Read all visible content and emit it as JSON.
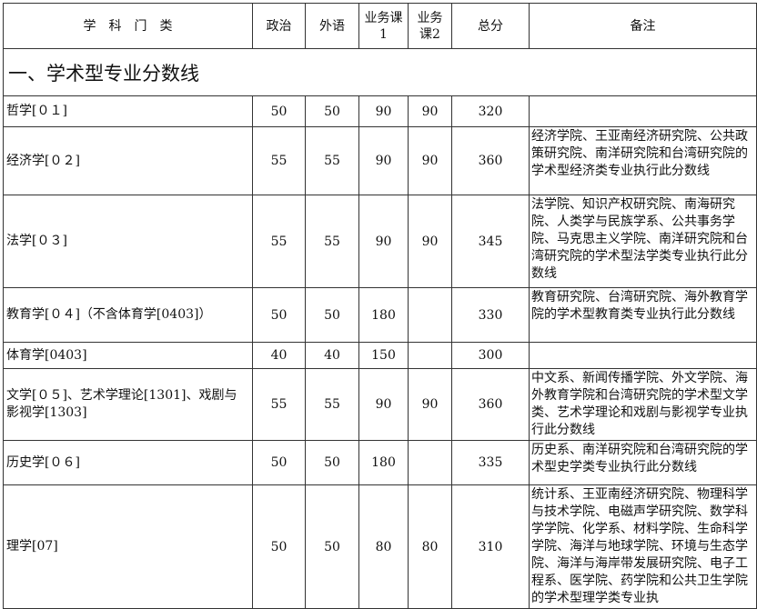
{
  "header": {
    "category": "学　科　门　类",
    "politics": "政治",
    "foreign_language": "外语",
    "course1": "业务课1",
    "course2": "业务课2",
    "total": "总分",
    "notes": "备注"
  },
  "section_title": "一、学术型专业分数线",
  "rows": [
    {
      "name": "哲学[０１]",
      "politics": "50",
      "foreign": "50",
      "c1": "90",
      "c2": "90",
      "total": "320",
      "note": ""
    },
    {
      "name": "经济学[０２]",
      "politics": "55",
      "foreign": "55",
      "c1": "90",
      "c2": "90",
      "total": "360",
      "note": "经济学院、王亚南经济研究院、公共政策研究院、南洋研究院和台湾研究院的学术型经济类专业执行此分数线"
    },
    {
      "name": "法学[０３]",
      "politics": "55",
      "foreign": "55",
      "c1": "90",
      "c2": "90",
      "total": "345",
      "note": "法学院、知识产权研究院、南海研究院、人类学与民族学系、公共事务学院、马克思主义学院、南洋研究院和台湾研究院的学术型法学类专业执行此分数线"
    },
    {
      "name": "教育学[０４]（不含体育学[0403]）",
      "politics": "50",
      "foreign": "50",
      "c1": "180",
      "c2": "",
      "total": "330",
      "note": "教育研究院、台湾研究院、海外教育学院的学术型教育类专业执行此分数线"
    },
    {
      "name": "体育学[0403]",
      "politics": "40",
      "foreign": "40",
      "c1": "150",
      "c2": "",
      "total": "300",
      "note": ""
    },
    {
      "name": "文学[０５]、艺术学理论[1301]、戏剧与影视学[1303]",
      "politics": "55",
      "foreign": "55",
      "c1": "90",
      "c2": "90",
      "total": "360",
      "note": "中文系、新闻传播学院、外文学院、海外教育学院和台湾研究院的学术型文学类、艺术学理论和戏剧与影视学专业执行此分数线"
    },
    {
      "name": "历史学[０６]",
      "politics": "50",
      "foreign": "50",
      "c1": "180",
      "c2": "",
      "total": "335",
      "note": "历史系、南洋研究院和台湾研究院的学术型史学类专业执行此分数线"
    },
    {
      "name": "理学[07]",
      "politics": "50",
      "foreign": "50",
      "c1": "80",
      "c2": "80",
      "total": "310",
      "note": "统计系、王亚南经济研究院、物理科学与技术学院、电磁声学研究院、数学科学学院、化学系、材料学院、生命科学学院、海洋与地球学院、环境与生态学院、海洋与海岸带发展研究院、电子工程系、医学院、药学院和公共卫生学院的学术型理学类专业执"
    }
  ]
}
